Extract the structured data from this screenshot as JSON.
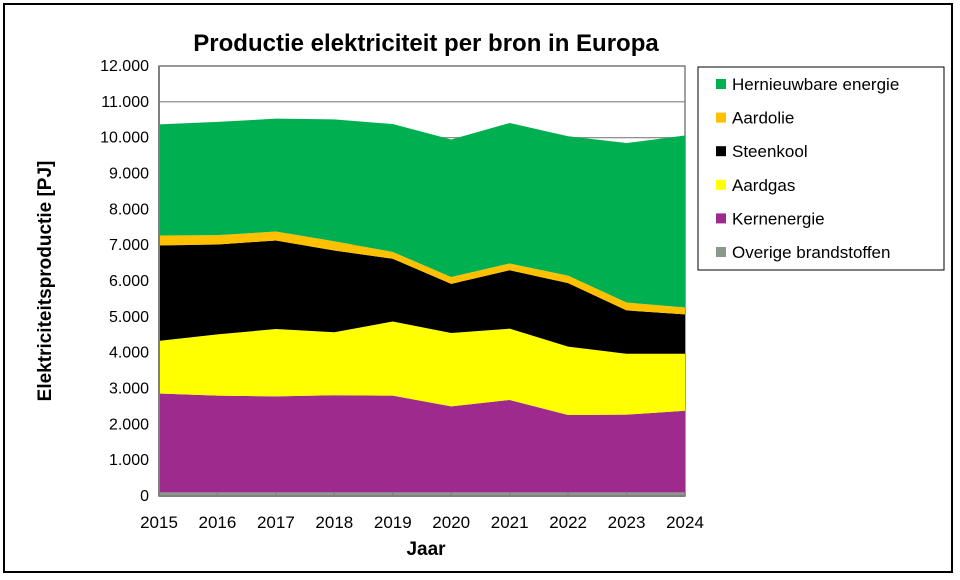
{
  "chart_data": {
    "type": "area",
    "stacked": true,
    "title": "Productie elektriciteit per bron in Europa",
    "xlabel": "Jaar",
    "ylabel": "Elektriciteitsproductie [PJ]",
    "ylim": [
      0,
      12000
    ],
    "yticks": [
      0,
      1000,
      2000,
      3000,
      4000,
      5000,
      6000,
      7000,
      8000,
      9000,
      10000,
      11000,
      12000
    ],
    "ytick_labels": [
      "0",
      "1.000",
      "2.000",
      "3.000",
      "4.000",
      "5.000",
      "6.000",
      "7.000",
      "8.000",
      "9.000",
      "10.000",
      "11.000",
      "12.000"
    ],
    "categories": [
      "2015",
      "2016",
      "2017",
      "2018",
      "2019",
      "2020",
      "2021",
      "2022",
      "2023",
      "2024"
    ],
    "grid": true,
    "legend_position": "right",
    "series": [
      {
        "name": "Overige brandstoffen",
        "color": "#8A9A8A",
        "values": [
          100,
          100,
          100,
          100,
          100,
          100,
          100,
          100,
          100,
          100
        ]
      },
      {
        "name": "Kernenergie",
        "color": "#9E2A8E",
        "values": [
          2760,
          2700,
          2680,
          2710,
          2700,
          2400,
          2580,
          2160,
          2170,
          2280
        ]
      },
      {
        "name": "Aardgas",
        "color": "#FFFF00",
        "values": [
          1470,
          1710,
          1880,
          1760,
          2070,
          2050,
          1990,
          1910,
          1700,
          1590
        ]
      },
      {
        "name": "Steenkool",
        "color": "#000000",
        "values": [
          2660,
          2510,
          2470,
          2280,
          1750,
          1370,
          1630,
          1770,
          1210,
          1100
        ]
      },
      {
        "name": "Aardolie",
        "color": "#FFC000",
        "values": [
          280,
          260,
          250,
          260,
          190,
          190,
          190,
          210,
          220,
          190
        ]
      },
      {
        "name": "Hernieuwbare energie",
        "color": "#00B050",
        "values": [
          3100,
          3160,
          3150,
          3400,
          3570,
          3840,
          3920,
          3890,
          4450,
          4800
        ]
      }
    ]
  }
}
